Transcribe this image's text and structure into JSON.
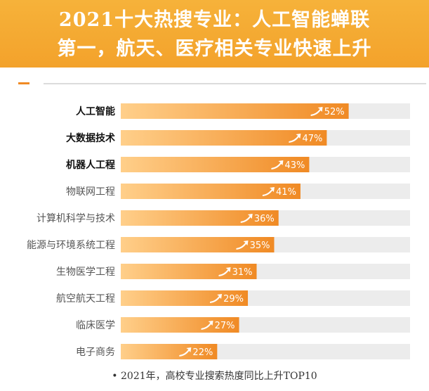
{
  "header": {
    "title_line1": "2021十大热搜专业：人工智能蝉联",
    "title_line2": "第一，航天、医疗相关专业快速上升"
  },
  "footnote": "• 2021年，高校专业搜索热度同比上升TOP10",
  "colors": {
    "header_bg": "#f4a52e",
    "bar_start": "#ffcf8a",
    "bar_end": "#f08a24",
    "track": "#ececec",
    "label_bold": "#111111",
    "label_normal": "#555555"
  },
  "chart_data": {
    "type": "bar",
    "orientation": "horizontal",
    "categories": [
      "人工智能",
      "大数据技术",
      "机器人工程",
      "物联网工程",
      "计算机科学与技术",
      "能源与环境系统工程",
      "生物医学工程",
      "航空航天工程",
      "临床医学",
      "电子商务"
    ],
    "values": [
      52,
      47,
      43,
      41,
      36,
      35,
      31,
      29,
      27,
      22
    ],
    "value_labels": [
      "52%",
      "47%",
      "43%",
      "41%",
      "36%",
      "35%",
      "31%",
      "29%",
      "27%",
      "22%"
    ],
    "bold_categories": [
      "人工智能",
      "大数据技术",
      "机器人工程"
    ],
    "unit": "%",
    "icon": "rising-trend-arrow-icon",
    "xlim": [
      0,
      66
    ],
    "grid": false,
    "legend": "none"
  }
}
